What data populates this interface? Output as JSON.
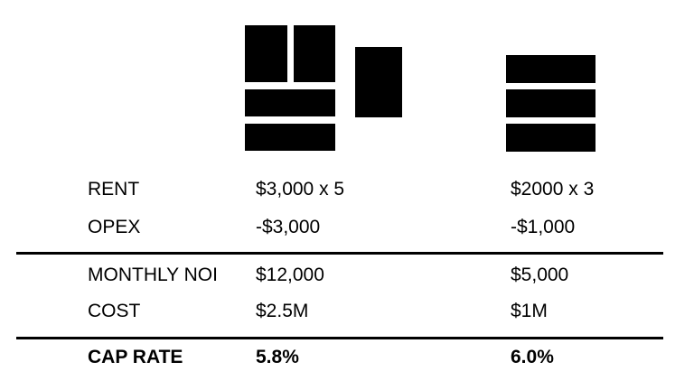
{
  "page": {
    "background_color": "#ffffff",
    "text_color": "#000000",
    "icon_color": "#000000",
    "rule_color": "#000000"
  },
  "icons": {
    "left_building": "five-unit-building-icon",
    "right_building": "three-unit-building-icon"
  },
  "table": {
    "rows": [
      {
        "label": "RENT",
        "property_a": "$3,000 x 5",
        "property_b": "$2000 x 3"
      },
      {
        "label": "OPEX",
        "property_a": "-$3,000",
        "property_b": "-$1,000"
      },
      {
        "label": "MONTHLY NOI",
        "property_a": "$12,000",
        "property_b": "$5,000"
      },
      {
        "label": "COST",
        "property_a": "$2.5M",
        "property_b": "$1M"
      },
      {
        "label": "CAP RATE",
        "property_a": "5.8%",
        "property_b": "6.0%"
      }
    ]
  }
}
